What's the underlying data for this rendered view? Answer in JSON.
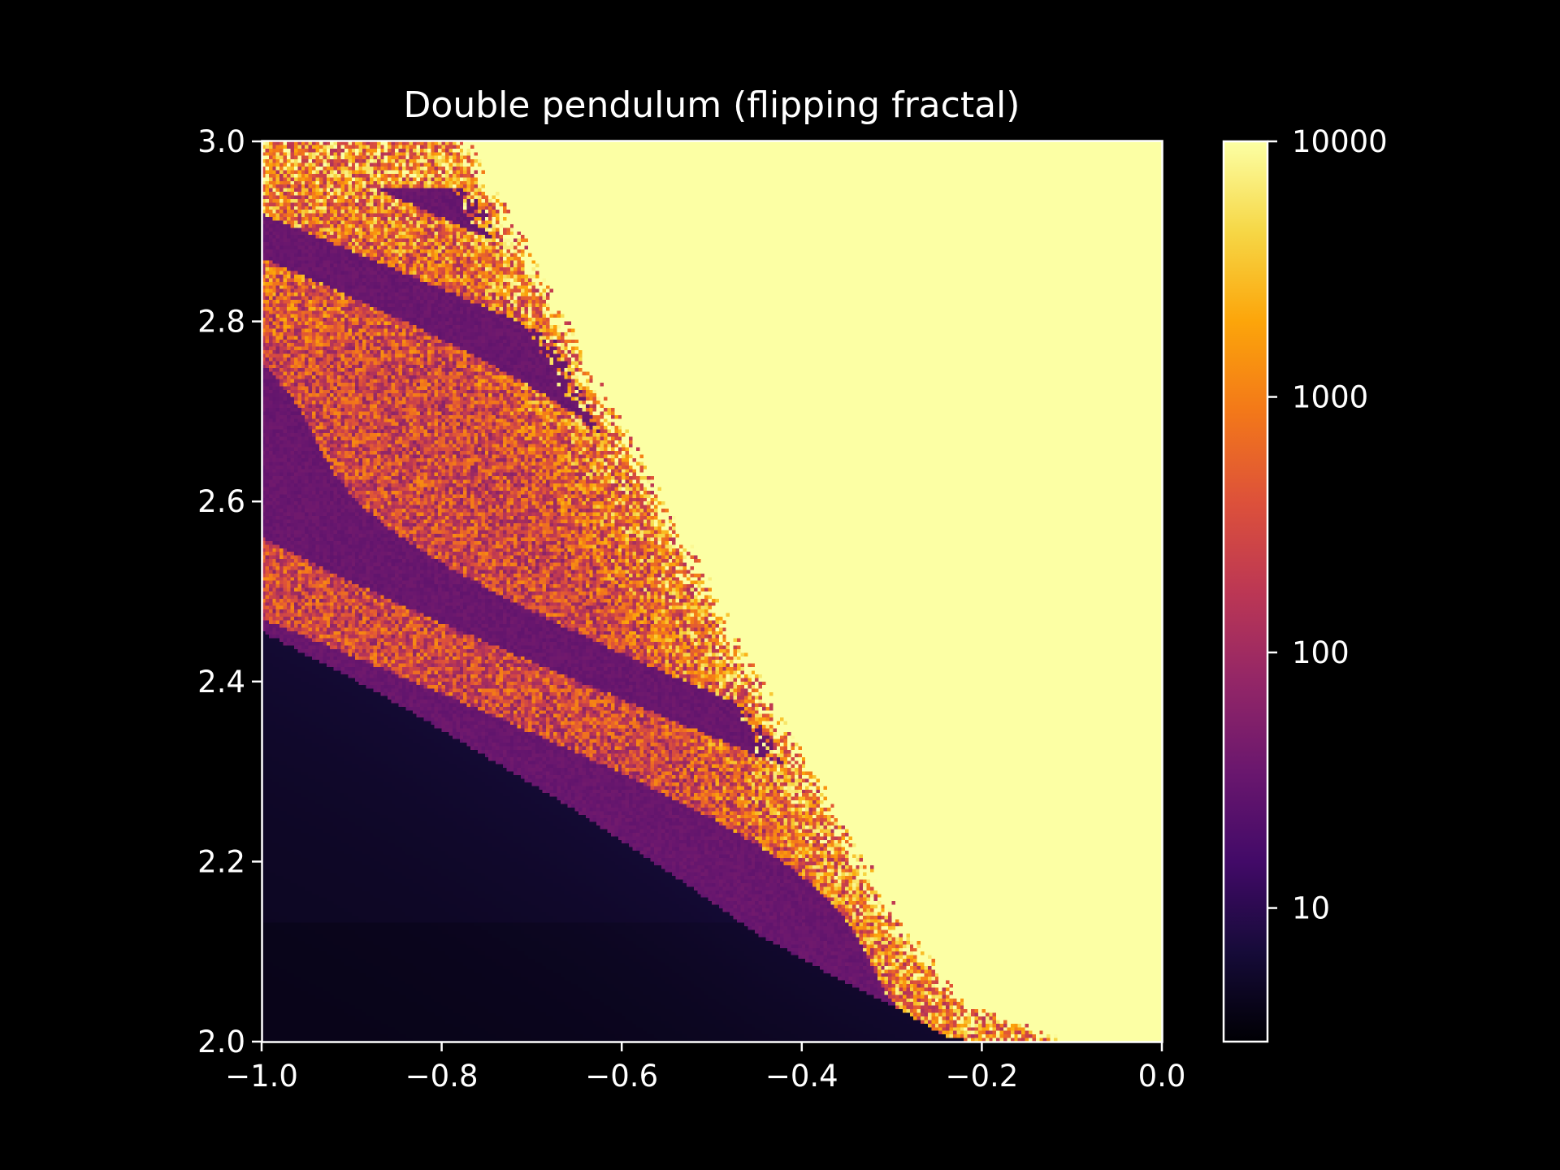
{
  "chart_data": {
    "type": "heatmap",
    "title": "Double pendulum (flipping fractal)",
    "xlabel": "",
    "ylabel": "",
    "xlim": [
      -1.0,
      0.0
    ],
    "ylim": [
      2.0,
      3.0
    ],
    "x_ticks": [
      -1.0,
      -0.8,
      -0.6,
      -0.4,
      -0.2,
      0.0
    ],
    "x_tick_labels": [
      "−1.0",
      "−0.8",
      "−0.6",
      "−0.4",
      "−0.2",
      "0.0"
    ],
    "y_ticks": [
      2.0,
      2.2,
      2.4,
      2.6,
      2.8,
      3.0
    ],
    "y_tick_labels": [
      "2.0",
      "2.2",
      "2.4",
      "2.6",
      "2.8",
      "3.0"
    ],
    "colorbar": {
      "scale": "log",
      "range": [
        3,
        10000
      ],
      "ticks": [
        10,
        100,
        1000,
        10000
      ],
      "tick_labels": [
        "10",
        "100",
        "1000",
        "10000"
      ],
      "colormap": "inferno"
    },
    "regions": {
      "no_flip_value": 10000,
      "boundary": [
        [
          -1.0,
          3.0
        ],
        [
          -0.78,
          3.0
        ],
        [
          -0.68,
          2.82
        ],
        [
          -0.55,
          2.58
        ],
        [
          -0.42,
          2.34
        ],
        [
          -0.29,
          2.12
        ],
        [
          -0.22,
          2.04
        ],
        [
          -0.11,
          2.0
        ]
      ],
      "fast_flip_edge": [
        [
          -1.0,
          2.455
        ],
        [
          -0.93,
          2.42
        ],
        [
          -0.84,
          2.37
        ],
        [
          -0.74,
          2.31
        ],
        [
          -0.64,
          2.25
        ],
        [
          -0.55,
          2.19
        ],
        [
          -0.45,
          2.12
        ],
        [
          -0.36,
          2.07
        ],
        [
          -0.29,
          2.035
        ],
        [
          -0.24,
          2.005
        ]
      ],
      "fast_flip_value": 4,
      "chaotic_value_range": [
        20,
        3000
      ]
    }
  }
}
